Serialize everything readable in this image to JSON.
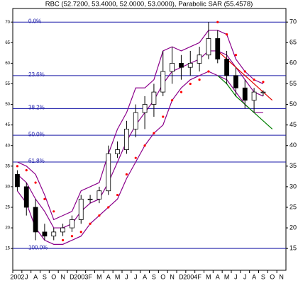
{
  "chart_data": {
    "type": "candlestick",
    "title": "RBC (52.7200, 53.4000, 52.0000, 53.0000), Parabolic SAR (55.4578)",
    "categories": [
      "2002",
      "J",
      "A",
      "S",
      "O",
      "N",
      "D",
      "2003",
      "F",
      "M",
      "A",
      "M",
      "J",
      "J",
      "A",
      "S",
      "O",
      "N",
      "D",
      "2004",
      "F",
      "M",
      "A",
      "M",
      "J",
      "J",
      "A",
      "S",
      "O",
      "N"
    ],
    "open": [
      33,
      30,
      25,
      19,
      18,
      19,
      20,
      22,
      27,
      27,
      29,
      38,
      39,
      44,
      48,
      50,
      53,
      58,
      60,
      59,
      60,
      62,
      66,
      61,
      57,
      54,
      51,
      53,
      null,
      null
    ],
    "high": [
      34,
      31,
      27,
      21,
      20,
      21,
      23,
      28,
      28,
      30,
      40,
      41,
      46,
      50,
      52,
      55,
      63,
      64,
      62,
      63,
      64,
      70,
      68,
      63,
      59,
      56,
      54,
      53.4,
      null,
      null
    ],
    "low": [
      29,
      23,
      17,
      17,
      17,
      18,
      19,
      21,
      26,
      26,
      28,
      37,
      38,
      42,
      44,
      47,
      52,
      55,
      56,
      57,
      58,
      61,
      60,
      55,
      52,
      49,
      48,
      52,
      null,
      null
    ],
    "close": [
      30,
      25,
      19,
      18,
      19,
      20,
      22,
      27,
      27,
      29,
      38,
      39,
      44,
      48,
      50,
      53,
      58,
      60,
      59,
      60,
      62,
      66,
      61,
      57,
      54,
      51,
      53,
      53,
      null,
      null
    ],
    "candle_color": "#000000",
    "overlays": [
      {
        "color": "#8b008b",
        "style": "line",
        "values": [
          36,
          35,
          33,
          28,
          22,
          23,
          24,
          29,
          30,
          31,
          38,
          44,
          48,
          54,
          54,
          56,
          63,
          64,
          63,
          64,
          65,
          68,
          68,
          67,
          61,
          58,
          56,
          55,
          null,
          null
        ]
      },
      {
        "color": "#8b008b",
        "style": "line",
        "values": [
          33,
          31,
          27,
          24,
          20,
          20,
          21,
          24,
          26,
          27,
          31,
          36,
          41,
          45,
          48,
          51,
          55,
          58,
          59,
          60,
          61,
          63,
          63,
          62,
          59,
          56,
          53,
          52,
          null,
          null
        ]
      },
      {
        "color": "#8b008b",
        "style": "line",
        "values": [
          29,
          26,
          20,
          17,
          16,
          16,
          17,
          18,
          21,
          23,
          25,
          27,
          32,
          36,
          40,
          43,
          45,
          51,
          54,
          56,
          57,
          58,
          57,
          56,
          53,
          50,
          48,
          48,
          null,
          null
        ]
      },
      {
        "color": "#ff0000",
        "style": "dots",
        "values": [
          35,
          34,
          31,
          27,
          24,
          17,
          18,
          19,
          21,
          23,
          25,
          28,
          33,
          37,
          40,
          43,
          47,
          51,
          53,
          55,
          56,
          58,
          70,
          67,
          62,
          58,
          56,
          55.4578,
          null,
          null
        ]
      },
      {
        "color": "#e00000",
        "style": "line",
        "values": [
          null,
          null,
          null,
          null,
          null,
          null,
          null,
          null,
          null,
          null,
          null,
          null,
          null,
          null,
          null,
          null,
          null,
          null,
          null,
          null,
          null,
          null,
          63,
          61,
          59,
          57,
          55,
          53,
          51,
          null
        ]
      },
      {
        "color": "#008000",
        "style": "line",
        "values": [
          null,
          null,
          null,
          null,
          null,
          null,
          null,
          null,
          null,
          null,
          null,
          null,
          null,
          null,
          null,
          null,
          null,
          null,
          null,
          null,
          null,
          null,
          57,
          55,
          52,
          50,
          48,
          46,
          44,
          null
        ]
      }
    ],
    "fib_color": "#1a1aa8",
    "fib_levels": [
      {
        "label": "0.0%",
        "value": 70
      },
      {
        "label": "23.6%",
        "value": 57
      },
      {
        "label": "38.2%",
        "value": 49
      },
      {
        "label": "50.0%",
        "value": 42.5
      },
      {
        "label": "61.8%",
        "value": 36
      },
      {
        "label": "100.0%",
        "value": 15
      }
    ],
    "ylim": [
      9.7,
      73.3
    ],
    "yticks": [
      15,
      20,
      25,
      30,
      35,
      40,
      45,
      50,
      55,
      60,
      65,
      70
    ]
  }
}
